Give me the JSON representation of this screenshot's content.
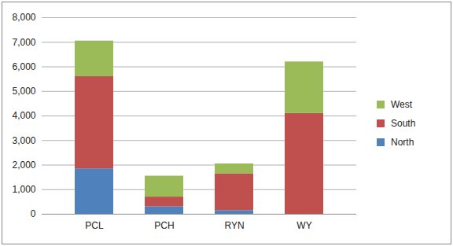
{
  "chart_data": {
    "type": "bar",
    "stacked": true,
    "grid": true,
    "legend": "right",
    "categories": [
      "PCL",
      "PCH",
      "RYN",
      "WY"
    ],
    "series": [
      {
        "name": "North",
        "color": "#4f81bd",
        "values": [
          1850,
          300,
          150,
          0
        ]
      },
      {
        "name": "South",
        "color": "#c0504d",
        "values": [
          3750,
          400,
          1500,
          4100
        ]
      },
      {
        "name": "West",
        "color": "#9bbb59",
        "values": [
          1450,
          850,
          400,
          2100
        ]
      }
    ],
    "ylim": [
      0,
      8000
    ],
    "yticks": [
      0,
      {
        "value": 1000,
        "label": "1,000"
      },
      {
        "value": 2000,
        "label": "2,000"
      },
      {
        "value": 3000,
        "label": "3,000"
      },
      {
        "value": 4000,
        "label": "4,000"
      },
      {
        "value": 5000,
        "label": "5,000"
      },
      {
        "value": 6000,
        "label": "6,000"
      },
      {
        "value": 7000,
        "label": "7,000"
      },
      {
        "value": 8000,
        "label": "8,000"
      }
    ]
  }
}
